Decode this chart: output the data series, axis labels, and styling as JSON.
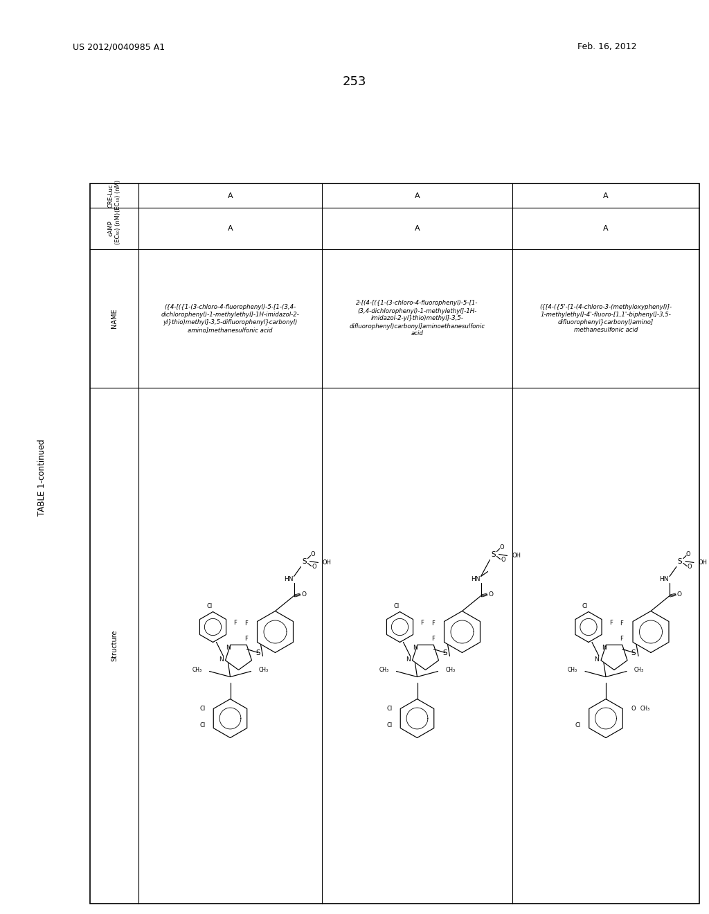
{
  "page_number": "253",
  "patent_number": "US 2012/0040985 A1",
  "patent_date": "Feb. 16, 2012",
  "table_title": "TABLE 1-continued",
  "background_color": "#ffffff",
  "text_color": "#000000",
  "col_headers": [
    "Structure",
    "NAME",
    "cAMP\n(EC50) (nM)",
    "CRE-Luc\n(EC50) (nM)"
  ],
  "name_row1_lines": [
    "({4-[({1-(3-chloro-4-fluorophenyl)-5-[1-(3,4-",
    "dichlorophenyl)-1-methylethyl]-1H-imidazol-2-",
    "yl}thio)methyl]-3,5-difluorophenyl}carbonyl)",
    "amino]methanesulfonic acid"
  ],
  "name_row2_lines": [
    "2-[(4-[({1-(3-chloro-4-fluorophenyl)-5-[1-",
    "(3,4-dichlorophenyl)-1-methylethyl]-1H-",
    "imidazol-2-yl}thio)methyl]-3,5-",
    "difluorophenyl)carbonyl]aminoethanesulfonic",
    "acid"
  ],
  "name_row3_lines": [
    "({[4-({5'-[1-(4-chloro-3-(methyloxyphenyl)]-",
    "1-methylethyl]-4'-fluoro-[1,1'-biphenyl]-3,5-",
    "difluorophenyl}carbonyl)amino]",
    "methanesulfonic acid"
  ],
  "camp_values": [
    "A",
    "A",
    "A"
  ],
  "cre_values": [
    "A",
    "A",
    "A"
  ]
}
